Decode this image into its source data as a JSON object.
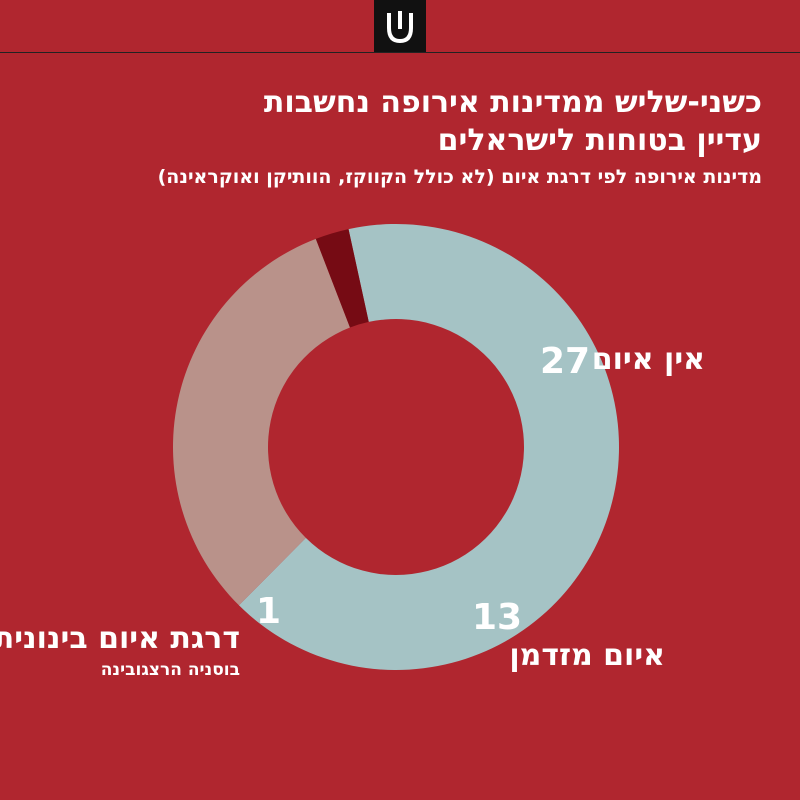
{
  "header": {
    "title_line1": "כשני-שליש ממדינות אירופה נחשבות",
    "title_line2": "עדיין בטוחות לישראלים",
    "subtitle": "מדינות אירופה לפי דרגת איום (לא כולל הקווקז, הוותיקן ואוקראינה)"
  },
  "colors": {
    "background": "#b0262f",
    "no_threat": "#a5c3c5",
    "occasional_threat": "#b9928a",
    "medium_threat": "#760b14"
  },
  "chart_data": {
    "type": "pie",
    "donut": true,
    "title": "כשני-שליש ממדינות אירופה נחשבות עדיין בטוחות לישראלים",
    "subtitle": "מדינות אירופה לפי דרגת איום (לא כולל הקווקז, הוותיקן ואוקראינה)",
    "categories": [
      "אין איום",
      "איום מזדמן",
      "דרגת איום בינונית"
    ],
    "values": [
      27,
      13,
      1
    ],
    "value_labels": [
      "27",
      "13",
      "1"
    ],
    "annotations": {
      "medium_threat_note": "בוסניה הרצגובינה"
    }
  }
}
